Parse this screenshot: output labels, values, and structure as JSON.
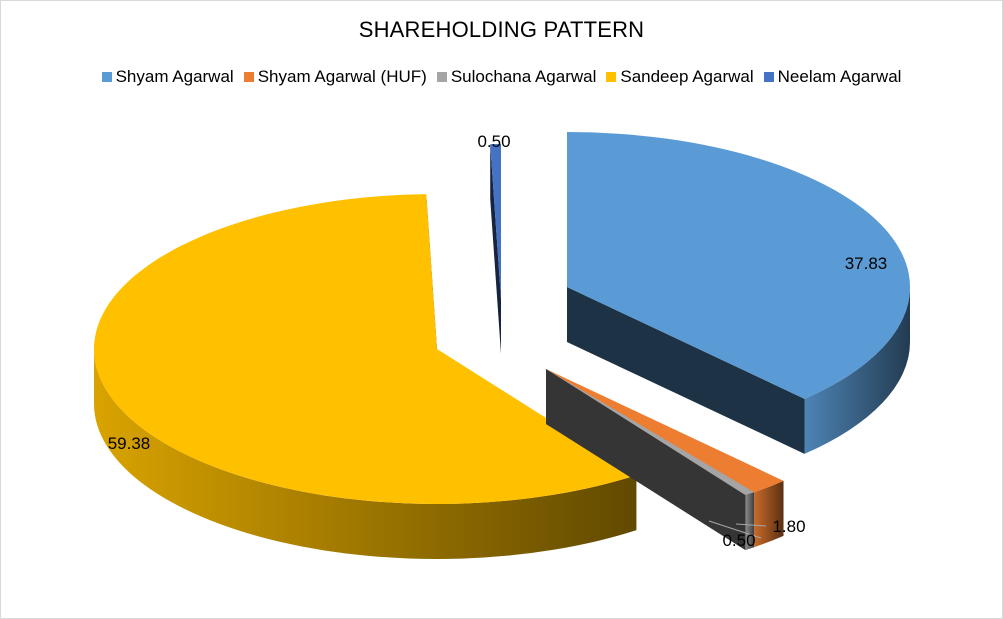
{
  "chart_data": {
    "type": "pie",
    "title": "SHAREHOLDING PATTERN",
    "legend_position": "top",
    "style": "3d-exploded",
    "series": [
      {
        "name": "Shyam Agarwal",
        "value": 37.83,
        "label": "37.83",
        "color": "#5B9BD5"
      },
      {
        "name": "Shyam Agarwal (HUF)",
        "value": 1.8,
        "label": "1.80",
        "color": "#ED7D31"
      },
      {
        "name": "Sulochana Agarwal",
        "value": 0.5,
        "label": "0.50",
        "color": "#A5A5A5"
      },
      {
        "name": "Sandeep Agarwal",
        "value": 59.38,
        "label": "59.38",
        "color": "#FFC000"
      },
      {
        "name": "Neelam Agarwal",
        "value": 0.5,
        "label": "0.50",
        "color": "#4472C4"
      }
    ]
  }
}
